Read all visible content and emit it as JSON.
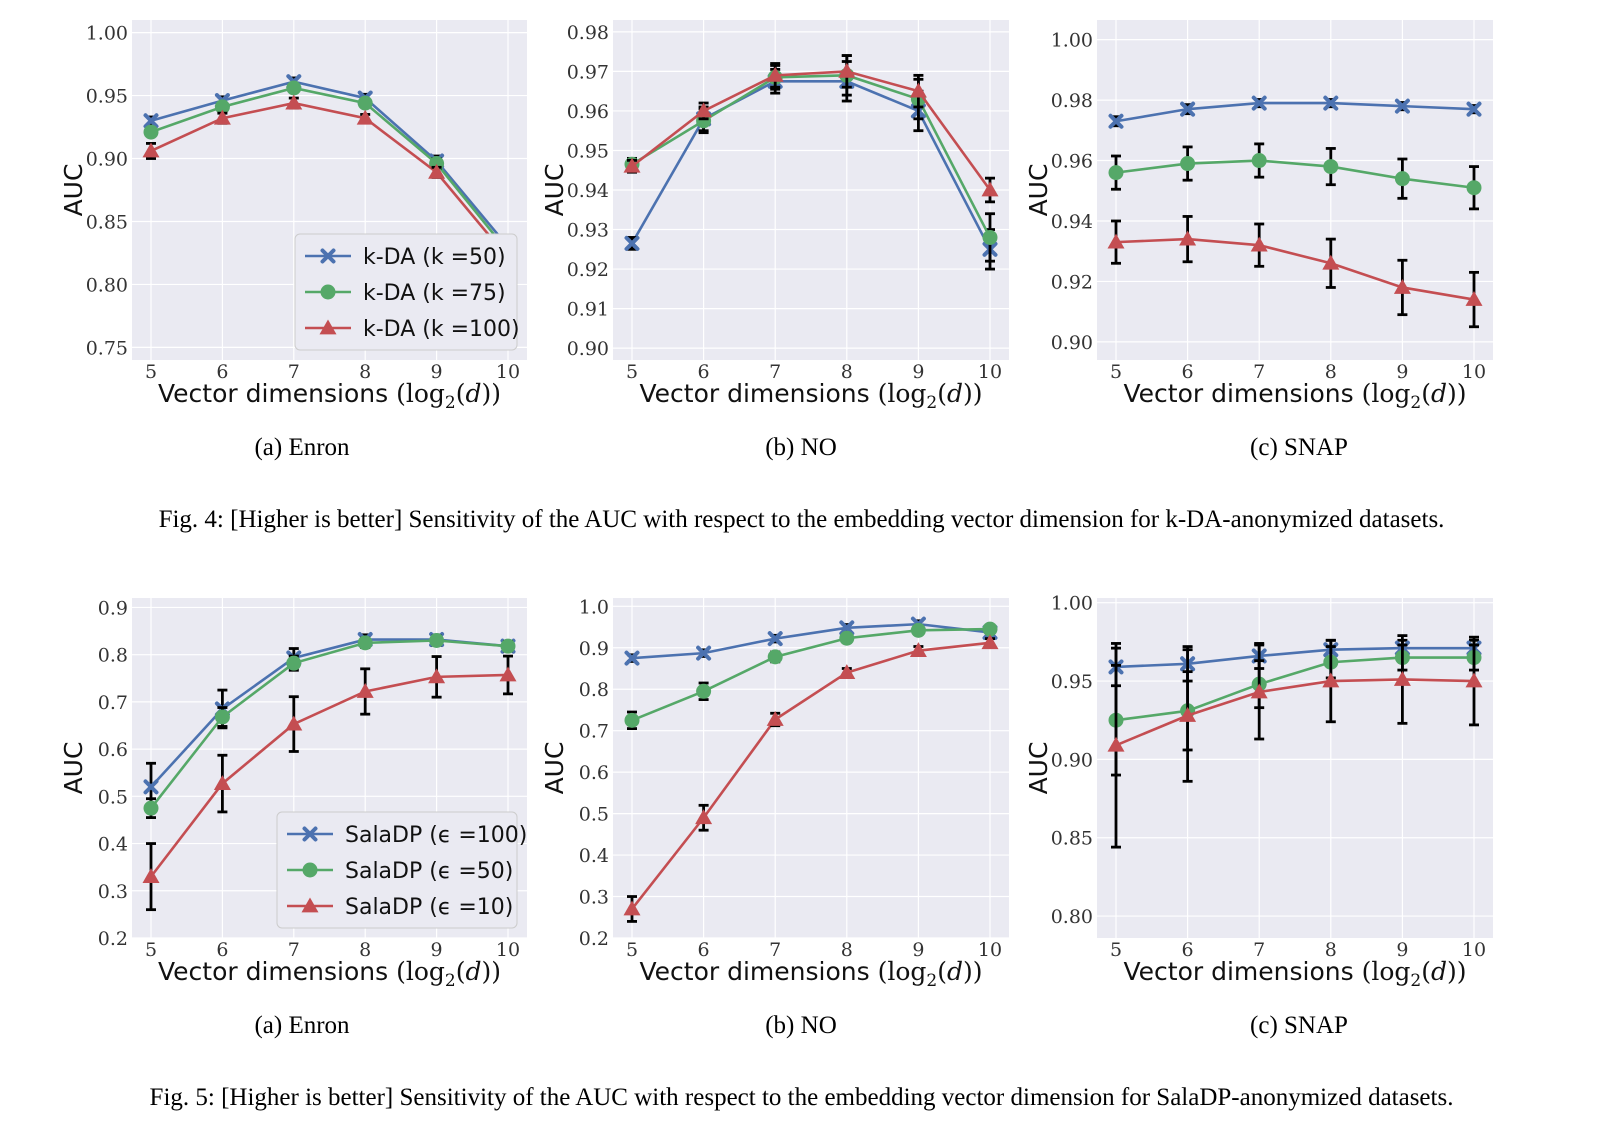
{
  "figures": [
    {
      "caption": "Fig. 4: [Higher is better] Sensitivity of the AUC with respect to the embedding vector dimension for k-DA-anonymized datasets.",
      "panel_labels": [
        "(a) Enron",
        "(b) NO",
        "(c) SNAP"
      ]
    },
    {
      "caption": "Fig. 5: [Higher is better] Sensitivity of the AUC with respect to the embedding vector dimension for SalaDP-anonymized datasets.",
      "panel_labels": [
        "(a) Enron",
        "(b) NO",
        "(c) SNAP"
      ]
    }
  ],
  "colors": {
    "blue": "#4c72b0",
    "green": "#55a868",
    "red": "#c44e52",
    "plot_bg": "#eaeaf2",
    "grid": "#ffffff",
    "errorbar": "#000000"
  },
  "chart_data": [
    {
      "type": "line",
      "xlabel": "Vector dimensions (log2(d))",
      "ylabel": "AUC",
      "x": [
        5,
        6,
        7,
        8,
        9,
        10
      ],
      "ylim": [
        0.74,
        1.01
      ],
      "yticks": [
        0.75,
        0.8,
        0.85,
        0.9,
        0.95,
        1.0
      ],
      "ytick_labels": [
        "0.75",
        "0.80",
        "0.85",
        "0.90",
        "0.95",
        "1.00"
      ],
      "grid": true,
      "legend": "lower-right",
      "series": [
        {
          "name": "k-DA (k =50)",
          "color": "blue",
          "marker": "x",
          "values": [
            0.93,
            0.946,
            0.961,
            0.948,
            0.898,
            0.83
          ],
          "err": [
            0.003,
            0.003,
            0.003,
            0.003,
            0.004,
            0.008
          ]
        },
        {
          "name": "k-DA (k =75)",
          "color": "green",
          "marker": "o",
          "values": [
            0.921,
            0.941,
            0.956,
            0.944,
            0.896,
            0.826
          ],
          "err": [
            0.003,
            0.003,
            0.003,
            0.003,
            0.004,
            0.006
          ]
        },
        {
          "name": "k-DA (k =100)",
          "color": "red",
          "marker": "^",
          "values": [
            0.906,
            0.932,
            0.944,
            0.932,
            0.889,
            0.821
          ],
          "err": [
            0.006,
            0.004,
            0.004,
            0.003,
            0.004,
            0.005
          ]
        }
      ]
    },
    {
      "type": "line",
      "xlabel": "Vector dimensions (log2(d))",
      "ylabel": "AUC",
      "x": [
        5,
        6,
        7,
        8,
        9,
        10
      ],
      "ylim": [
        0.897,
        0.983
      ],
      "yticks": [
        0.9,
        0.91,
        0.92,
        0.93,
        0.94,
        0.95,
        0.96,
        0.97,
        0.98
      ],
      "ytick_labels": [
        "0.90",
        "0.91",
        "0.92",
        "0.93",
        "0.94",
        "0.95",
        "0.96",
        "0.97",
        "0.98"
      ],
      "grid": true,
      "legend": "none",
      "series": [
        {
          "color": "blue",
          "marker": "x",
          "values": [
            0.9265,
            0.958,
            0.9675,
            0.9675,
            0.96,
            0.925
          ],
          "err": [
            0.0015,
            0.003,
            0.003,
            0.005,
            0.005,
            0.005
          ]
        },
        {
          "color": "green",
          "marker": "o",
          "values": [
            0.9465,
            0.9575,
            0.9685,
            0.969,
            0.963,
            0.928
          ],
          "err": [
            0.0015,
            0.003,
            0.003,
            0.005,
            0.005,
            0.006
          ]
        },
        {
          "color": "red",
          "marker": "^",
          "values": [
            0.946,
            0.96,
            0.969,
            0.97,
            0.965,
            0.94
          ],
          "err": [
            0.0015,
            0.002,
            0.003,
            0.004,
            0.004,
            0.003
          ]
        }
      ]
    },
    {
      "type": "line",
      "xlabel": "Vector dimensions (log2(d))",
      "ylabel": "AUC",
      "x": [
        5,
        6,
        7,
        8,
        9,
        10
      ],
      "ylim": [
        0.894,
        1.0065
      ],
      "yticks": [
        0.9,
        0.92,
        0.94,
        0.96,
        0.98,
        1.0
      ],
      "ytick_labels": [
        "0.90",
        "0.92",
        "0.94",
        "0.96",
        "0.98",
        "1.00"
      ],
      "grid": true,
      "legend": "none",
      "series": [
        {
          "color": "blue",
          "marker": "x",
          "values": [
            0.973,
            0.977,
            0.979,
            0.979,
            0.978,
            0.977
          ],
          "err": [
            0.0015,
            0.0015,
            0.0012,
            0.0012,
            0.0012,
            0.0012
          ]
        },
        {
          "color": "green",
          "marker": "o",
          "values": [
            0.956,
            0.959,
            0.96,
            0.958,
            0.954,
            0.951
          ],
          "err": [
            0.0055,
            0.0055,
            0.0055,
            0.006,
            0.0065,
            0.007
          ]
        },
        {
          "color": "red",
          "marker": "^",
          "values": [
            0.933,
            0.934,
            0.932,
            0.926,
            0.918,
            0.914
          ],
          "err": [
            0.007,
            0.0075,
            0.007,
            0.008,
            0.009,
            0.009
          ]
        }
      ]
    },
    {
      "type": "line",
      "xlabel": "Vector dimensions (log2(d))",
      "ylabel": "AUC",
      "x": [
        5,
        6,
        7,
        8,
        9,
        10
      ],
      "ylim": [
        0.2,
        0.92
      ],
      "yticks": [
        0.2,
        0.3,
        0.4,
        0.5,
        0.6,
        0.7,
        0.8,
        0.9
      ],
      "ytick_labels": [
        "0.2",
        "0.3",
        "0.4",
        "0.5",
        "0.6",
        "0.7",
        "0.8",
        "0.9"
      ],
      "grid": true,
      "legend": "lower-right",
      "series": [
        {
          "name": "SalaDP (ϵ =100)",
          "color": "blue",
          "marker": "x",
          "values": [
            0.52,
            0.685,
            0.793,
            0.832,
            0.832,
            0.818
          ],
          "err": [
            0.05,
            0.04,
            0.02,
            0.01,
            0.01,
            0.01
          ]
        },
        {
          "name": "SalaDP (ϵ =50)",
          "color": "green",
          "marker": "o",
          "values": [
            0.475,
            0.668,
            0.782,
            0.825,
            0.83,
            0.818
          ],
          "err": [
            0.02,
            0.02,
            0.015,
            0.01,
            0.01,
            0.01
          ]
        },
        {
          "name": "SalaDP (ϵ =10)",
          "color": "red",
          "marker": "^",
          "values": [
            0.33,
            0.527,
            0.653,
            0.722,
            0.753,
            0.757
          ],
          "err": [
            0.07,
            0.06,
            0.058,
            0.048,
            0.043,
            0.04
          ]
        }
      ]
    },
    {
      "type": "line",
      "xlabel": "Vector dimensions (log2(d))",
      "ylabel": "AUC",
      "x": [
        5,
        6,
        7,
        8,
        9,
        10
      ],
      "ylim": [
        0.2,
        1.02
      ],
      "yticks": [
        0.2,
        0.3,
        0.4,
        0.5,
        0.6,
        0.7,
        0.8,
        0.9,
        1.0
      ],
      "ytick_labels": [
        "0.2",
        "0.3",
        "0.4",
        "0.5",
        "0.6",
        "0.7",
        "0.8",
        "0.9",
        "1.0"
      ],
      "grid": true,
      "legend": "none",
      "series": [
        {
          "color": "blue",
          "marker": "x",
          "values": [
            0.875,
            0.887,
            0.922,
            0.948,
            0.957,
            0.937
          ],
          "err": [
            0.008,
            0.008,
            0.008,
            0.008,
            0.008,
            0.008
          ]
        },
        {
          "color": "green",
          "marker": "o",
          "values": [
            0.725,
            0.795,
            0.878,
            0.923,
            0.942,
            0.945
          ],
          "err": [
            0.02,
            0.02,
            0.012,
            0.01,
            0.01,
            0.01
          ]
        },
        {
          "color": "red",
          "marker": "^",
          "values": [
            0.27,
            0.49,
            0.727,
            0.84,
            0.893,
            0.912
          ],
          "err": [
            0.03,
            0.03,
            0.015,
            0.01,
            0.01,
            0.01
          ]
        }
      ]
    },
    {
      "type": "line",
      "xlabel": "Vector dimensions (log2(d))",
      "ylabel": "AUC",
      "x": [
        5,
        6,
        7,
        8,
        9,
        10
      ],
      "ylim": [
        0.786,
        1.003
      ],
      "yticks": [
        0.8,
        0.85,
        0.9,
        0.95,
        1.0
      ],
      "ytick_labels": [
        "0.80",
        "0.85",
        "0.90",
        "0.95",
        "1.00"
      ],
      "grid": true,
      "legend": "none",
      "series": [
        {
          "color": "blue",
          "marker": "x",
          "values": [
            0.959,
            0.961,
            0.966,
            0.97,
            0.971,
            0.971
          ],
          "err": [
            0.012,
            0.011,
            0.008,
            0.006,
            0.005,
            0.005
          ]
        },
        {
          "color": "green",
          "marker": "o",
          "values": [
            0.925,
            0.931,
            0.948,
            0.962,
            0.965,
            0.965
          ],
          "err": [
            0.035,
            0.025,
            0.015,
            0.01,
            0.008,
            0.008
          ]
        },
        {
          "color": "red",
          "marker": "^",
          "values": [
            0.909,
            0.928,
            0.943,
            0.95,
            0.951,
            0.95
          ],
          "err": [
            0.065,
            0.042,
            0.03,
            0.026,
            0.028,
            0.028
          ]
        }
      ]
    }
  ]
}
